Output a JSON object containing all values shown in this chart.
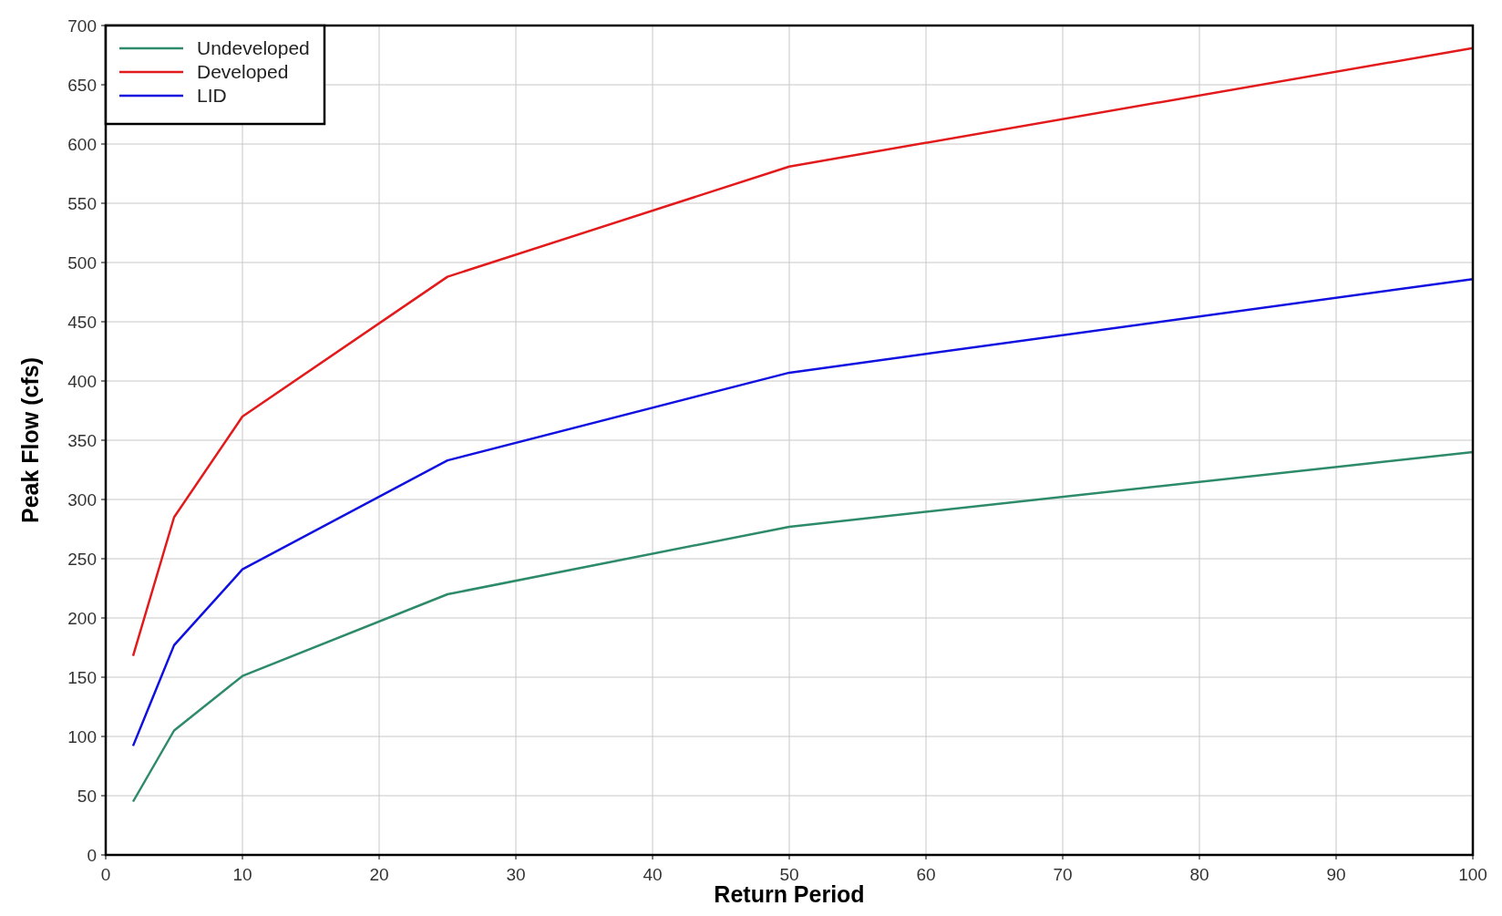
{
  "chart_data": {
    "type": "line",
    "xlabel": "Return Period",
    "ylabel": "Peak Flow (cfs)",
    "xlim": [
      0,
      100
    ],
    "xticks": [
      0,
      10,
      20,
      30,
      40,
      50,
      60,
      70,
      80,
      90,
      100
    ],
    "ylim": [
      0,
      700
    ],
    "yticks": [
      0,
      50,
      100,
      150,
      200,
      250,
      300,
      350,
      400,
      450,
      500,
      550,
      600,
      650,
      700
    ],
    "grid": true,
    "legend": "top left",
    "marker": "none",
    "line_style": "solid",
    "x": [
      2,
      5,
      10,
      25,
      50,
      100
    ],
    "series": [
      {
        "name": "Undeveloped",
        "color": "#2e8b6a",
        "values": [
          45,
          105,
          151,
          220,
          277,
          340
        ]
      },
      {
        "name": "Developed",
        "color": "#e31a1c",
        "values": [
          168,
          285,
          370,
          488,
          581,
          681
        ]
      },
      {
        "name": "LID",
        "color": "#1010e0",
        "values": [
          92,
          177,
          241,
          333,
          407,
          486
        ]
      }
    ]
  }
}
